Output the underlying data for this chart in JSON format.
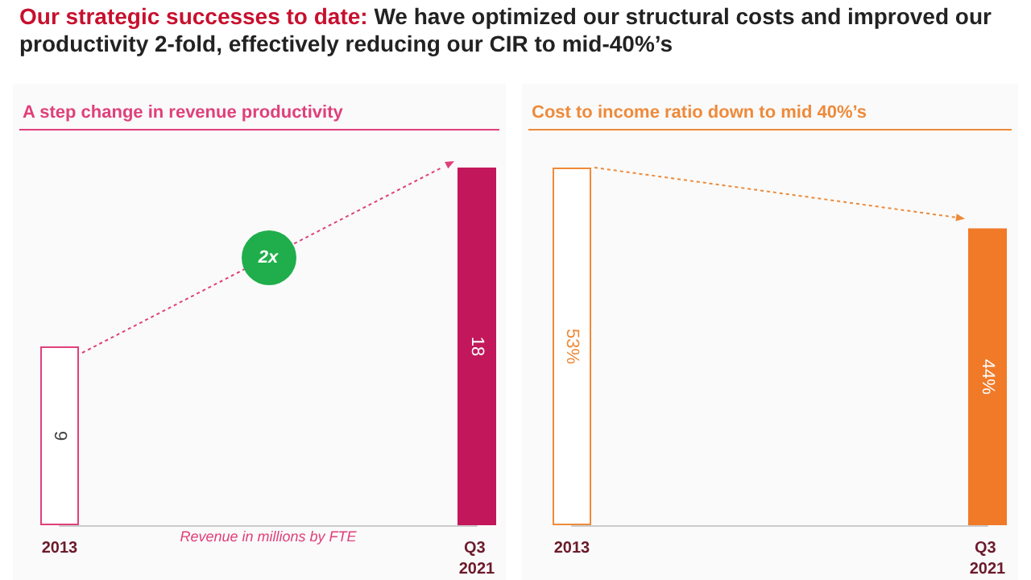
{
  "chart_data": [
    {
      "type": "bar",
      "title": "Our strategic successes to date: We have optimized our structural costs and improved our productivity 2-fold, effectively reducing our CIR to mid-40%’s",
      "subtitle": "A step change in revenue productivity",
      "xlabel": "Revenue in millions by FTE",
      "categories": [
        "2013",
        "Q3 2021"
      ],
      "values": [
        9,
        18
      ],
      "colors": [
        "#ffffff",
        "#c2185b"
      ],
      "color": "#e0407a",
      "data_labels": true,
      "annotations": [
        "2x"
      ]
    },
    {
      "type": "bar",
      "title": "Cost to income ratio down to mid 40%’s",
      "categories": [
        "2013",
        "Q3 2021"
      ],
      "values": [
        53,
        44
      ],
      "value_labels": [
        "53%",
        "44%"
      ],
      "colors": [
        "#ffffff",
        "#f07a28"
      ],
      "color": "#ee8a3a"
    }
  ]
}
